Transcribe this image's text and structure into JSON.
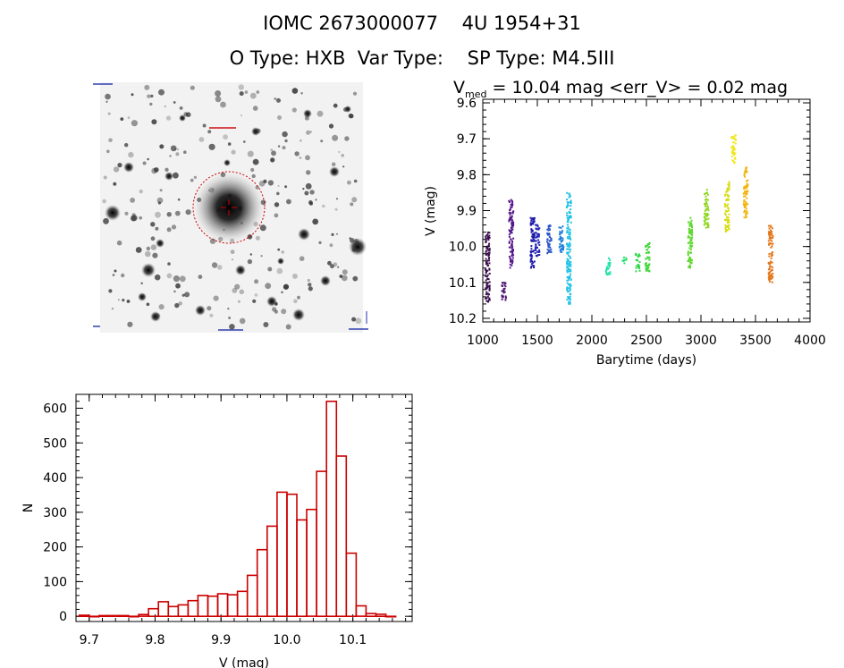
{
  "header": {
    "line1": "IOMC 2673000077    4U 1954+31",
    "line2": "O Type: HXB  Var Type:    SP Type: M4.5III"
  },
  "finder_chart": {
    "description_icon": "star-field-finder-image",
    "circle_color": "#cc0000",
    "marker_color": "#cc0000"
  },
  "chart_data": [
    {
      "type": "scatter",
      "title_prefix": "V",
      "title_sub": "med",
      "title_rest": " = 10.04 mag <err_V> = 0.02 mag",
      "xlabel": "Barytime (days)",
      "ylabel": "V (mag)",
      "xlim": [
        1000,
        4000
      ],
      "ylim": [
        10.21,
        9.59
      ],
      "y_inverted": true,
      "xticks": [
        1000,
        1500,
        2000,
        2500,
        3000,
        3500,
        4000
      ],
      "yticks": [
        9.6,
        9.7,
        9.8,
        9.9,
        10.0,
        10.1,
        10.2
      ],
      "ytick_labels": [
        "9.6",
        "9.7",
        "9.8",
        "9.9",
        "10.0",
        "10.1",
        "10.2"
      ],
      "clusters": [
        {
          "x": 1045,
          "ymin": 9.96,
          "ymax": 10.16,
          "color": "#3a0d4d"
        },
        {
          "x": 1195,
          "ymin": 10.1,
          "ymax": 10.15,
          "color": "#4b1270"
        },
        {
          "x": 1260,
          "ymin": 9.87,
          "ymax": 10.06,
          "color": "#55188a"
        },
        {
          "x": 1455,
          "ymin": 9.92,
          "ymax": 10.06,
          "color": "#1f1aa8"
        },
        {
          "x": 1500,
          "ymin": 9.94,
          "ymax": 10.03,
          "color": "#2326b5"
        },
        {
          "x": 1610,
          "ymin": 9.94,
          "ymax": 10.02,
          "color": "#2a55c9"
        },
        {
          "x": 1720,
          "ymin": 9.94,
          "ymax": 10.02,
          "color": "#1f7fd9"
        },
        {
          "x": 1790,
          "ymin": 9.85,
          "ymax": 10.16,
          "color": "#22c2e6"
        },
        {
          "x": 2150,
          "ymin": 10.03,
          "ymax": 10.08,
          "color": "#21e2a9"
        },
        {
          "x": 2300,
          "ymin": 10.03,
          "ymax": 10.05,
          "color": "#28e070"
        },
        {
          "x": 2420,
          "ymin": 10.02,
          "ymax": 10.07,
          "color": "#30d84a"
        },
        {
          "x": 2510,
          "ymin": 9.99,
          "ymax": 10.07,
          "color": "#3cd634"
        },
        {
          "x": 2900,
          "ymin": 9.92,
          "ymax": 10.06,
          "color": "#5cd82a"
        },
        {
          "x": 3050,
          "ymin": 9.84,
          "ymax": 9.95,
          "color": "#8fd61f"
        },
        {
          "x": 3240,
          "ymin": 9.82,
          "ymax": 9.96,
          "color": "#d7dc12"
        },
        {
          "x": 3300,
          "ymin": 9.69,
          "ymax": 9.77,
          "color": "#f0e61a"
        },
        {
          "x": 3410,
          "ymin": 9.78,
          "ymax": 9.92,
          "color": "#f2b511"
        },
        {
          "x": 3640,
          "ymin": 9.94,
          "ymax": 10.1,
          "color": "#e3761a"
        }
      ]
    },
    {
      "type": "bar",
      "style": "histogram-outline",
      "color": "#cc0000",
      "xlabel": "V (mag)",
      "ylabel": "N",
      "xlim": [
        9.68,
        10.19
      ],
      "ylim": [
        -15,
        640
      ],
      "bin_width": 0.015,
      "xticks": [
        9.7,
        9.8,
        9.9,
        10.0,
        10.1
      ],
      "xtick_labels": [
        "9.7",
        "9.8",
        "9.9",
        "10.0",
        "10.1"
      ],
      "yticks": [
        0,
        100,
        200,
        300,
        400,
        500,
        600
      ],
      "bins": [
        {
          "x0": 9.685,
          "n": 3
        },
        {
          "x0": 9.7,
          "n": 0
        },
        {
          "x0": 9.715,
          "n": 2
        },
        {
          "x0": 9.73,
          "n": 2
        },
        {
          "x0": 9.745,
          "n": 2
        },
        {
          "x0": 9.76,
          "n": 0
        },
        {
          "x0": 9.775,
          "n": 5
        },
        {
          "x0": 9.79,
          "n": 22
        },
        {
          "x0": 9.805,
          "n": 42
        },
        {
          "x0": 9.82,
          "n": 28
        },
        {
          "x0": 9.835,
          "n": 33
        },
        {
          "x0": 9.85,
          "n": 45
        },
        {
          "x0": 9.865,
          "n": 60
        },
        {
          "x0": 9.88,
          "n": 58
        },
        {
          "x0": 9.895,
          "n": 65
        },
        {
          "x0": 9.91,
          "n": 62
        },
        {
          "x0": 9.925,
          "n": 72
        },
        {
          "x0": 9.94,
          "n": 118
        },
        {
          "x0": 9.955,
          "n": 192
        },
        {
          "x0": 9.97,
          "n": 260
        },
        {
          "x0": 9.985,
          "n": 358
        },
        {
          "x0": 10.0,
          "n": 352
        },
        {
          "x0": 10.015,
          "n": 278
        },
        {
          "x0": 10.03,
          "n": 308
        },
        {
          "x0": 10.045,
          "n": 418
        },
        {
          "x0": 10.06,
          "n": 620
        },
        {
          "x0": 10.075,
          "n": 462
        },
        {
          "x0": 10.09,
          "n": 182
        },
        {
          "x0": 10.105,
          "n": 30
        },
        {
          "x0": 10.12,
          "n": 8
        },
        {
          "x0": 10.135,
          "n": 6
        },
        {
          "x0": 10.15,
          "n": 0
        }
      ]
    }
  ]
}
